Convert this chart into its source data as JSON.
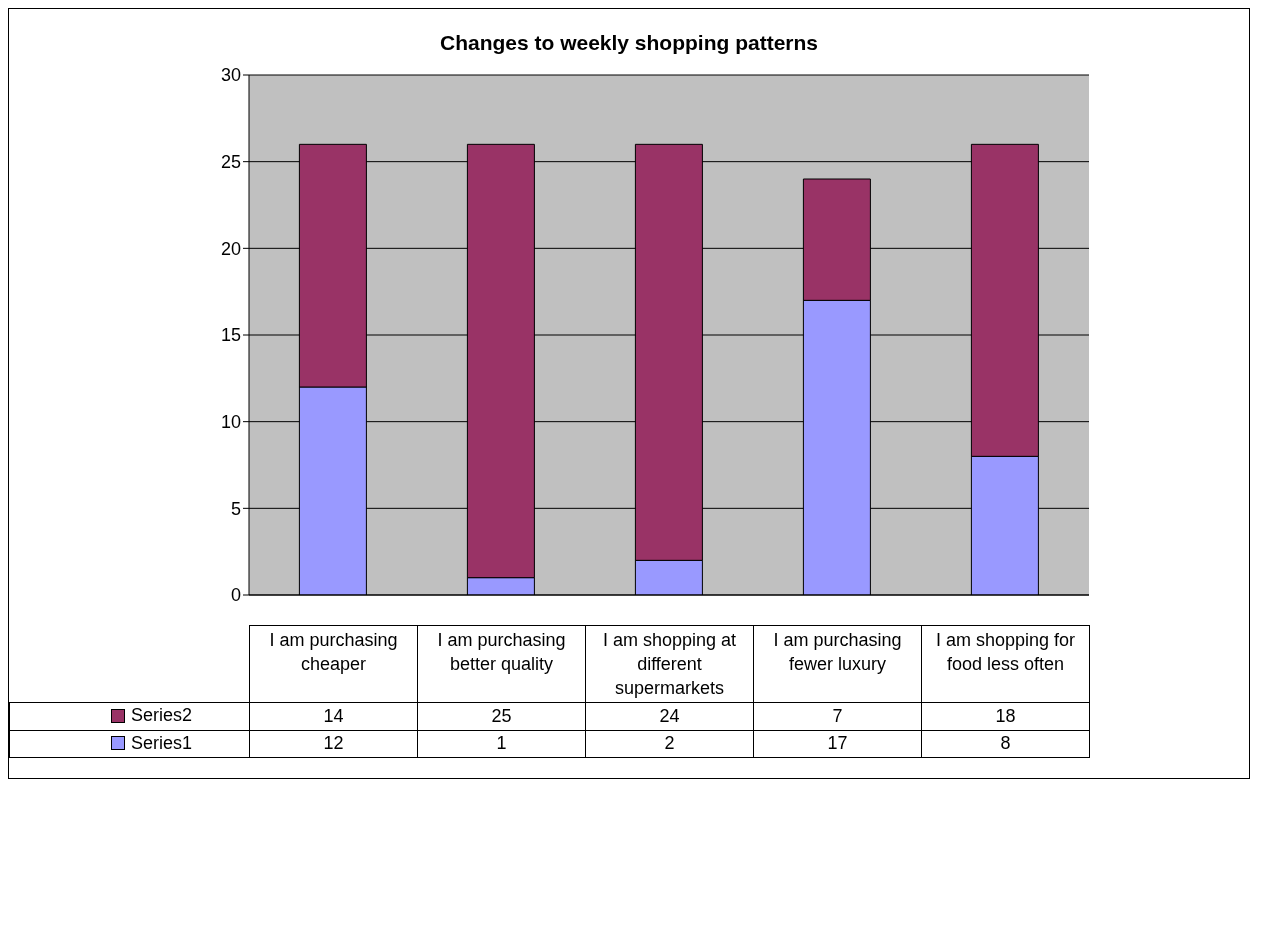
{
  "chart_data": {
    "type": "bar",
    "title": "Changes to weekly shopping patterns",
    "categories": [
      "I am purchasing cheaper",
      "I am purchasing better quality",
      "I am shopping at different supermarkets",
      "I am purchasing fewer luxury",
      "I am shopping for food less often"
    ],
    "series": [
      {
        "name": "Series1",
        "color": "#9999ff",
        "values": [
          12,
          1,
          2,
          17,
          8
        ]
      },
      {
        "name": "Series2",
        "color": "#993366",
        "values": [
          14,
          25,
          24,
          7,
          18
        ]
      }
    ],
    "stacked": true,
    "ylim": [
      0,
      30
    ],
    "yticks": [
      0,
      5,
      10,
      15,
      20,
      25,
      30
    ],
    "grid": "y",
    "legend": "bottom",
    "data_labels": true
  }
}
